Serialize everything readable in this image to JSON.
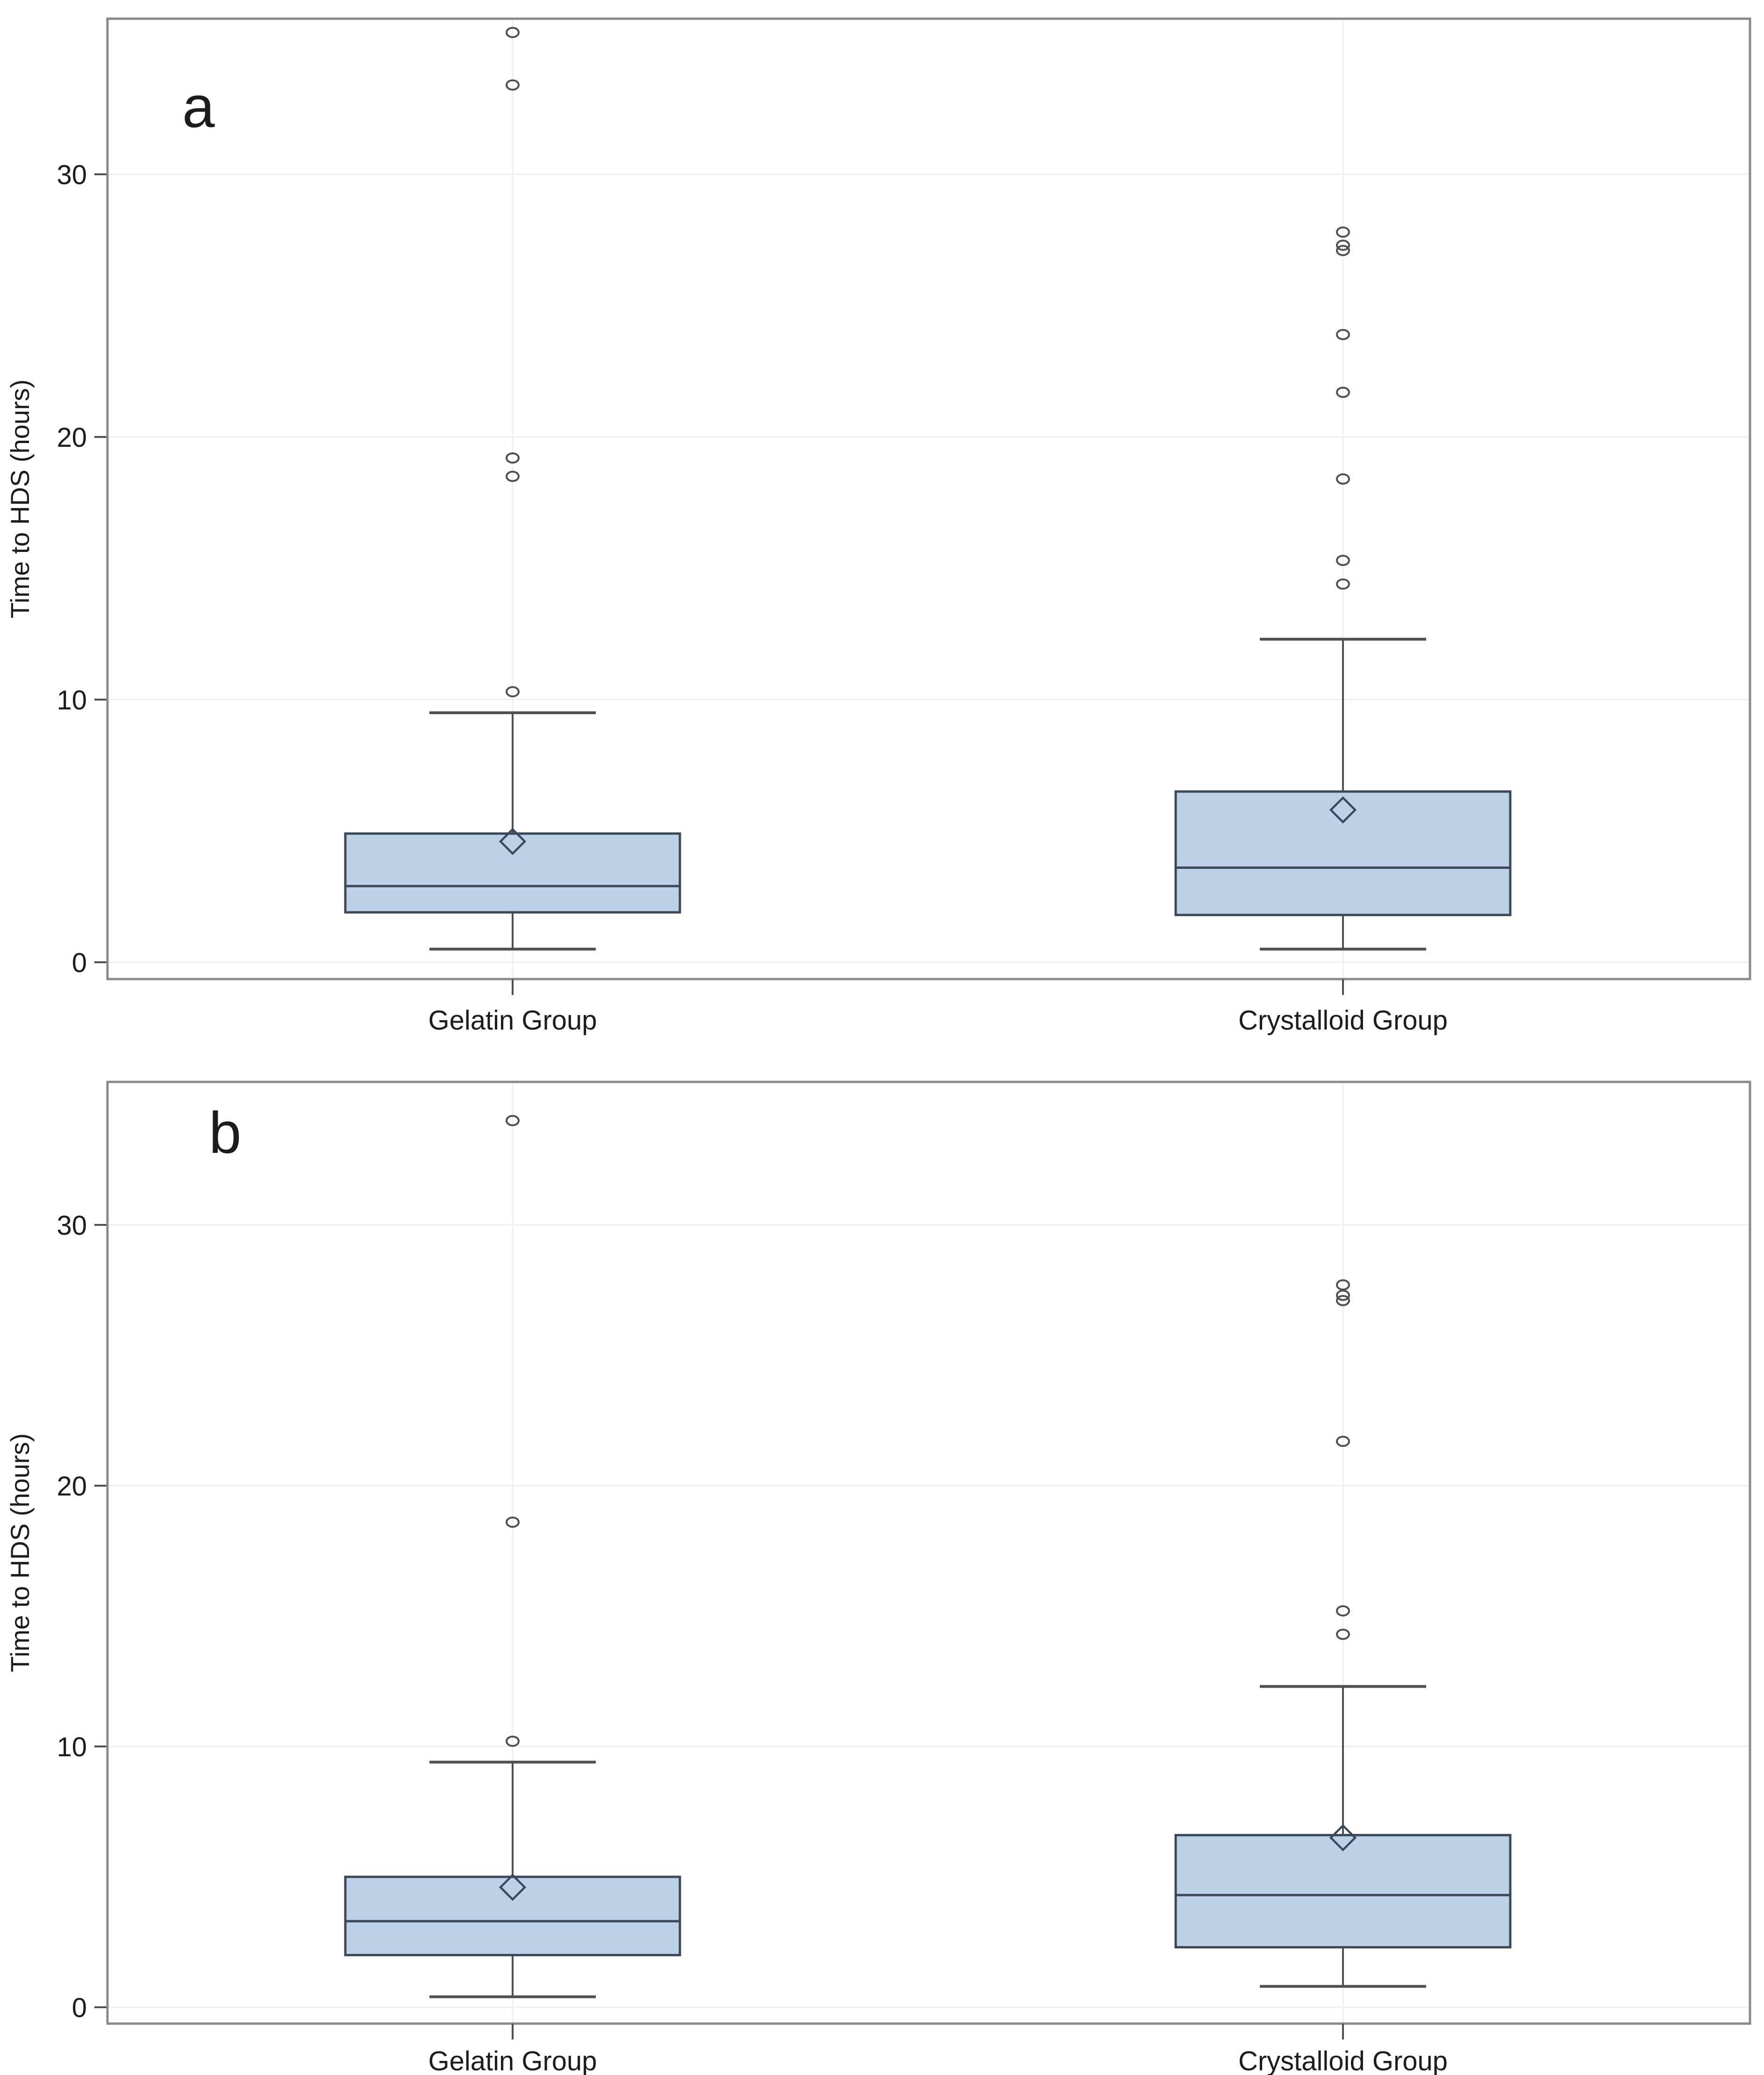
{
  "figure": {
    "y_axis_label": "Time to HDS (hours)",
    "categories": [
      "Gelatin Group",
      "Crystalloid Group"
    ],
    "panel_labels": [
      "a",
      "b"
    ]
  },
  "colors": {
    "box_fill": "#bcd1e8",
    "box_stroke": "#3b4859",
    "whisker": "#4f4f4f",
    "outlier": "#4f4f4f",
    "grid": "#efefef",
    "frame": "#8a8a8a",
    "tick": "#4f4f4f",
    "text": "#1c1c1c",
    "background": "#ffffff"
  },
  "chart_data": [
    {
      "type": "box",
      "panel_label": "a",
      "title": "",
      "xlabel": "",
      "ylabel": "Time to HDS (hours)",
      "categories": [
        "Gelatin Group",
        "Crystalloid Group"
      ],
      "yticks": [
        0,
        10,
        20,
        30
      ],
      "ylim": [
        0,
        36
      ],
      "grid": true,
      "legend": false,
      "series": [
        {
          "name": "Gelatin Group",
          "whisker_low": 0.5,
          "q1": 1.9,
          "median": 2.9,
          "q3": 4.9,
          "whisker_high": 9.5,
          "mean": 4.6,
          "outliers": [
            10.3,
            18.5,
            19.2,
            33.4,
            35.4
          ]
        },
        {
          "name": "Crystalloid Group",
          "whisker_low": 0.5,
          "q1": 1.8,
          "median": 3.6,
          "q3": 6.5,
          "whisker_high": 12.3,
          "mean": 5.8,
          "outliers": [
            14.4,
            15.3,
            18.4,
            21.7,
            23.9,
            27.1,
            27.3,
            27.8
          ]
        }
      ]
    },
    {
      "type": "box",
      "panel_label": "b",
      "title": "",
      "xlabel": "",
      "ylabel": "Time to HDS (hours)",
      "categories": [
        "Gelatin Group",
        "Crystalloid Group"
      ],
      "yticks": [
        0,
        10,
        20,
        30
      ],
      "ylim": [
        0,
        35.5
      ],
      "grid": true,
      "legend": false,
      "series": [
        {
          "name": "Gelatin Group",
          "whisker_low": 0.4,
          "q1": 2.0,
          "median": 3.3,
          "q3": 5.0,
          "whisker_high": 9.4,
          "mean": 4.6,
          "outliers": [
            10.2,
            18.6,
            34.0
          ]
        },
        {
          "name": "Crystalloid Group",
          "whisker_low": 0.8,
          "q1": 2.3,
          "median": 4.3,
          "q3": 6.6,
          "whisker_high": 12.3,
          "mean": 6.5,
          "outliers": [
            14.3,
            15.2,
            21.7,
            27.1,
            27.3,
            27.7
          ]
        }
      ]
    }
  ]
}
